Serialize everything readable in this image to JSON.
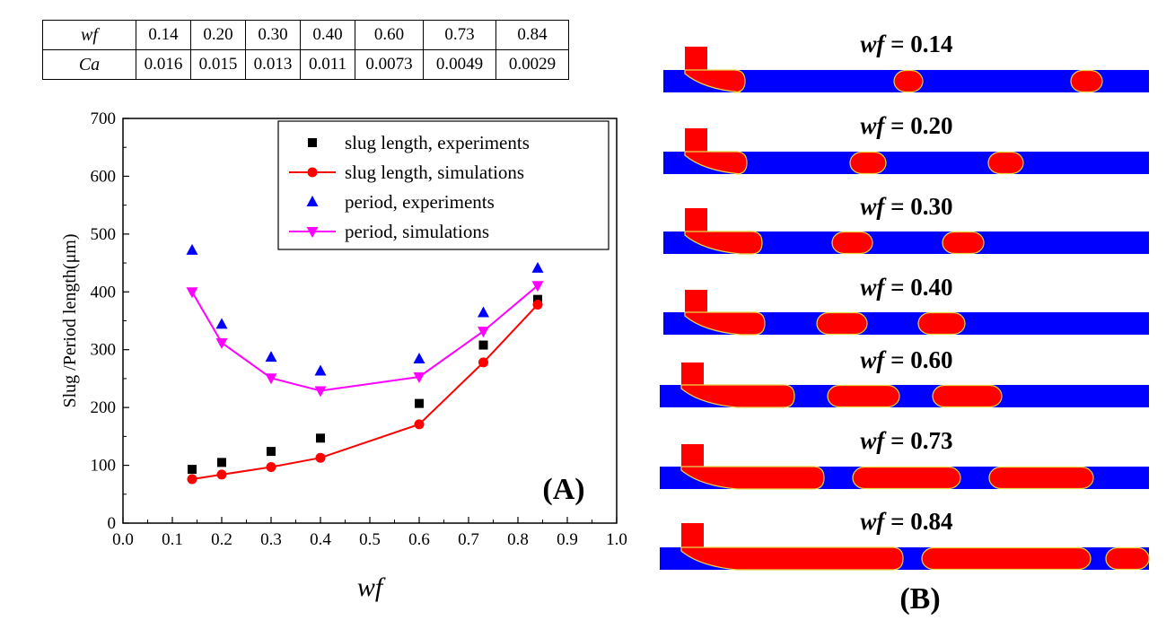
{
  "table": {
    "row_labels": [
      "wf",
      "Ca"
    ],
    "wf": [
      "0.14",
      "0.20",
      "0.30",
      "0.40",
      "0.60",
      "0.73",
      "0.84"
    ],
    "Ca": [
      "0.016",
      "0.015",
      "0.013",
      "0.011",
      "0.0073",
      "0.0049",
      "0.0029"
    ]
  },
  "colors": {
    "slug_exp": "#000000",
    "slug_sim": "#ff0000",
    "period_exp": "#0000ff",
    "period_sim": "#ff00ff",
    "channel": "#0000ff",
    "droplet": "#ff0000",
    "interface": "#e8d84a"
  },
  "chart_data": {
    "type": "scatter",
    "xlabel": "wf",
    "ylabel": "Slug /Period length(μm)",
    "xlim": [
      0.0,
      1.0
    ],
    "ylim": [
      0,
      700
    ],
    "xticks": [
      "0.0",
      "0.1",
      "0.2",
      "0.3",
      "0.4",
      "0.5",
      "0.6",
      "0.7",
      "0.8",
      "0.9",
      "1.0"
    ],
    "yticks": [
      "0",
      "100",
      "200",
      "300",
      "400",
      "500",
      "600",
      "700"
    ],
    "panel_label": "(A)",
    "legend_position": "top-right",
    "grid": false,
    "series": [
      {
        "name": "slug length, experiments",
        "marker": "square",
        "line": false,
        "x": [
          0.14,
          0.2,
          0.3,
          0.4,
          0.6,
          0.73,
          0.84
        ],
        "y": [
          93,
          105,
          124,
          147,
          207,
          308,
          387
        ]
      },
      {
        "name": "slug length, simulations",
        "marker": "circle",
        "line": true,
        "x": [
          0.14,
          0.2,
          0.3,
          0.4,
          0.6,
          0.73,
          0.84
        ],
        "y": [
          76,
          84,
          97,
          113,
          171,
          278,
          378
        ]
      },
      {
        "name": "period, experiments",
        "marker": "triangle-up",
        "line": false,
        "x": [
          0.14,
          0.2,
          0.3,
          0.4,
          0.6,
          0.73,
          0.84
        ],
        "y": [
          472,
          344,
          287,
          263,
          284,
          364,
          441
        ]
      },
      {
        "name": "period, simulations",
        "marker": "triangle-down",
        "line": true,
        "x": [
          0.14,
          0.2,
          0.3,
          0.4,
          0.6,
          0.73,
          0.84
        ],
        "y": [
          400,
          312,
          251,
          229,
          253,
          332,
          411
        ]
      }
    ]
  },
  "panel_b": {
    "label": "(B)",
    "rows": [
      {
        "prefix": "wf",
        "value": "= 0.14"
      },
      {
        "prefix": "wf",
        "value": "= 0.20"
      },
      {
        "prefix": "wf",
        "value": "= 0.30"
      },
      {
        "prefix": "wf",
        "value": "= 0.40"
      },
      {
        "prefix": "wf",
        "value": "= 0.60"
      },
      {
        "prefix": "wf",
        "value": "= 0.73"
      },
      {
        "prefix": "wf",
        "value": "= 0.84"
      }
    ]
  }
}
